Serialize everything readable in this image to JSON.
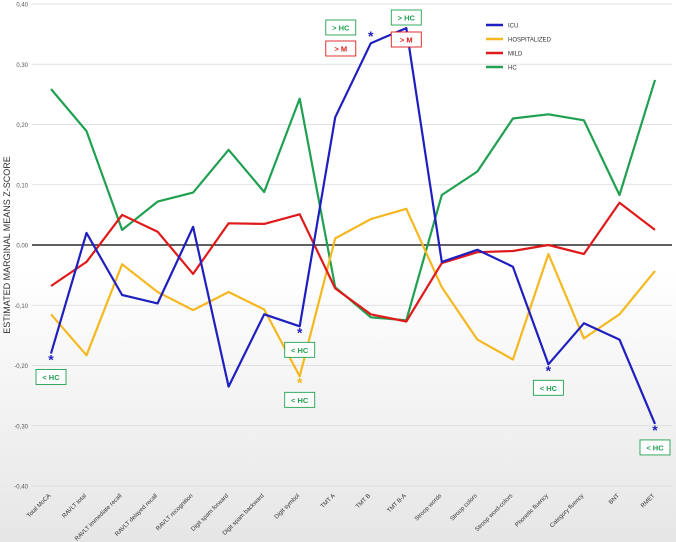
{
  "chart_data": {
    "type": "line",
    "ylabel": "ESTIMATED MARGINAL MEANS Z-SCORE",
    "xlabel": "",
    "ylim": [
      -0.4,
      0.4
    ],
    "yticks": [
      "0,40",
      "0,30",
      "0,20",
      "0,10",
      "0,00",
      "-0,10",
      "-0,20",
      "-0,30",
      "-0,40"
    ],
    "ytick_values": [
      0.4,
      0.3,
      0.2,
      0.1,
      0.0,
      -0.1,
      -0.2,
      -0.3,
      -0.4
    ],
    "categories": [
      "Total MoCA",
      "RAVLT total",
      "RAVLT immediate recall",
      "RAVLT delayed recall",
      "RAVLT recognition",
      "Digit spam forward",
      "Digit spam backward",
      "Digit symbol",
      "TMT A",
      "TMT B",
      "TMT B-A",
      "Stroop words",
      "Stroop colors",
      "Stroop word-colors",
      "Phonetic fluency",
      "Category fluency",
      "BNT",
      "RMET"
    ],
    "legend_position": "top-right",
    "series": [
      {
        "name": "ICU",
        "color": "#1f1fc0",
        "values": [
          -0.18,
          0.02,
          -0.083,
          -0.097,
          0.03,
          -0.235,
          -0.115,
          -0.135,
          0.212,
          0.335,
          0.36,
          -0.028,
          -0.008,
          -0.036,
          -0.198,
          -0.13,
          -0.157,
          -0.297
        ]
      },
      {
        "name": "HOSPITALIZED",
        "color": "#f5b820",
        "values": [
          -0.115,
          -0.183,
          -0.032,
          -0.078,
          -0.108,
          -0.078,
          -0.107,
          -0.218,
          0.011,
          0.043,
          0.06,
          -0.07,
          -0.157,
          -0.19,
          -0.015,
          -0.155,
          -0.115,
          -0.043
        ]
      },
      {
        "name": "MILD",
        "color": "#e01a1a",
        "values": [
          -0.068,
          -0.028,
          0.05,
          0.022,
          -0.048,
          0.036,
          0.035,
          0.051,
          -0.072,
          -0.115,
          -0.127,
          -0.03,
          -0.012,
          -0.01,
          0.0,
          -0.015,
          0.07,
          0.025
        ]
      },
      {
        "name": "HC",
        "color": "#20a050",
        "values": [
          0.259,
          0.189,
          0.025,
          0.072,
          0.087,
          0.158,
          0.088,
          0.243,
          -0.07,
          -0.12,
          -0.125,
          0.083,
          0.122,
          0.21,
          0.217,
          0.207,
          0.083,
          0.274
        ]
      }
    ],
    "annotations": [
      {
        "label": "< HC",
        "color": "#20a050",
        "category": "Total MoCA",
        "value": -0.18,
        "series": "ICU",
        "side": "below"
      },
      {
        "label": "< HC",
        "color": "#20a050",
        "category": "Digit symbol",
        "value": -0.135,
        "series": "ICU",
        "side": "below"
      },
      {
        "label": "< HC",
        "color": "#20a050",
        "category": "Digit symbol",
        "value": -0.218,
        "series": "HOSPITALIZED",
        "side": "below"
      },
      {
        "label": "> HC",
        "color": "#20a050",
        "category": "TMT B",
        "value": 0.335,
        "series": "ICU",
        "side": "above"
      },
      {
        "label": "> M",
        "color": "#e01a1a",
        "category": "TMT B",
        "value": 0.335,
        "series": "ICU",
        "side": "above2"
      },
      {
        "label": "> HC",
        "color": "#20a050",
        "category": "TMT B-A",
        "value": 0.36,
        "series": "ICU",
        "side": "above"
      },
      {
        "label": "> M",
        "color": "#e01a1a",
        "category": "TMT B-A",
        "value": 0.36,
        "series": "ICU",
        "side": "above2"
      },
      {
        "label": "< HC",
        "color": "#20a050",
        "category": "Phonetic fluency",
        "value": -0.198,
        "series": "ICU",
        "side": "below"
      },
      {
        "label": "< HC",
        "color": "#20a050",
        "category": "RMET",
        "value": -0.297,
        "series": "ICU",
        "side": "below"
      }
    ],
    "significance_marker": "*"
  }
}
